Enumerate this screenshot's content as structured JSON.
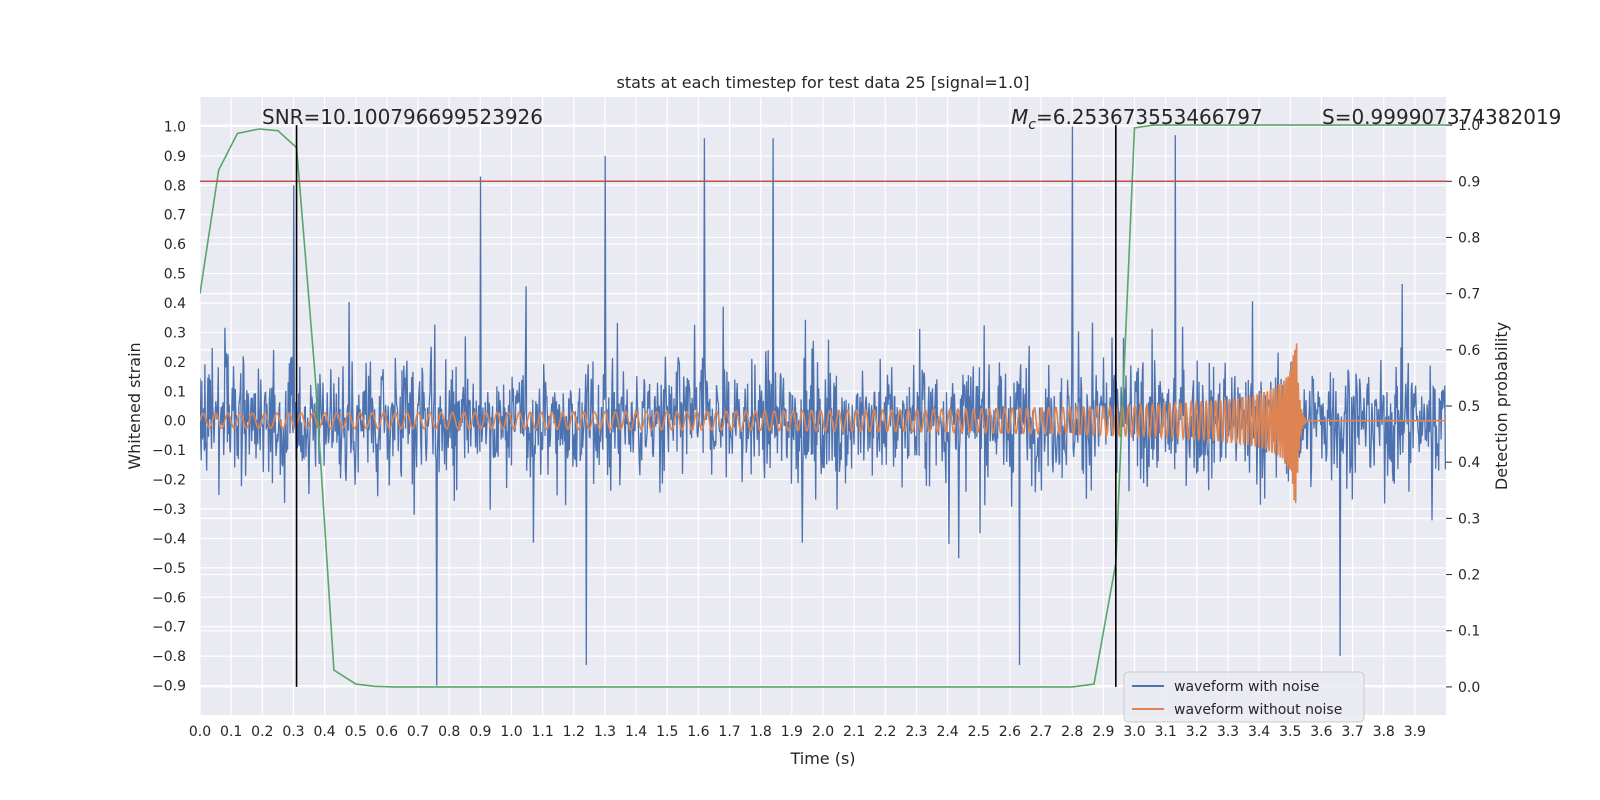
{
  "chart_data": {
    "type": "line",
    "title": "stats at each timestep for test data 25 [signal=1.0]",
    "xlabel": "Time (s)",
    "ylabel_left": "Whitened strain",
    "ylabel_right": "Detection probability",
    "xlim": [
      0.0,
      4.0
    ],
    "ylim_left": [
      -1.0,
      1.1
    ],
    "ylim_right": [
      -0.05,
      1.05
    ],
    "x_ticks": [
      "0.0",
      "0.1",
      "0.2",
      "0.3",
      "0.4",
      "0.5",
      "0.6",
      "0.7",
      "0.8",
      "0.9",
      "1.0",
      "1.1",
      "1.2",
      "1.3",
      "1.4",
      "1.5",
      "1.6",
      "1.7",
      "1.8",
      "1.9",
      "2.0",
      "2.1",
      "2.2",
      "2.3",
      "2.4",
      "2.5",
      "2.6",
      "2.7",
      "2.8",
      "2.9",
      "3.0",
      "3.1",
      "3.2",
      "3.3",
      "3.4",
      "3.5",
      "3.6",
      "3.7",
      "3.8",
      "3.9"
    ],
    "y_ticks_left": [
      "1.0",
      "0.9",
      "0.8",
      "0.7",
      "0.6",
      "0.5",
      "0.4",
      "0.3",
      "0.2",
      "0.1",
      "0.0",
      "−0.1",
      "−0.2",
      "−0.3",
      "−0.4",
      "−0.5",
      "−0.6",
      "−0.7",
      "−0.8",
      "−0.9"
    ],
    "y_ticks_right": [
      "1.0",
      "0.9",
      "0.8",
      "0.7",
      "0.6",
      "0.5",
      "0.4",
      "0.3",
      "0.2",
      "0.1",
      "0.0"
    ],
    "annotations": {
      "snr": "SNR=10.100796699523926",
      "mc_prefix": "M",
      "mc_sub": "c",
      "mc_value": "=6.253673553466797",
      "s": "S=0.999907374382019"
    },
    "threshold": {
      "axis": "right",
      "value": 0.9,
      "color": "#c44e52"
    },
    "vertical_lines": [
      0.31,
      2.94
    ],
    "series": [
      {
        "name": "waveform with noise",
        "axis": "left",
        "color": "#4c72b0",
        "kind": "noise",
        "std": 0.2,
        "peaks": [
          [
            0.3,
            0.8
          ],
          [
            0.9,
            0.83
          ],
          [
            1.3,
            0.9
          ],
          [
            1.62,
            0.96
          ],
          [
            1.84,
            0.96
          ],
          [
            2.8,
            1.0
          ],
          [
            3.13,
            0.97
          ],
          [
            0.76,
            -0.9
          ],
          [
            2.63,
            -0.83
          ],
          [
            1.24,
            -0.83
          ],
          [
            3.66,
            -0.8
          ]
        ]
      },
      {
        "name": "waveform without noise",
        "axis": "left",
        "color": "#dd8452",
        "kind": "chirp",
        "start_amplitude": 0.025,
        "end_time": 3.52,
        "peak_amplitude": 0.28,
        "start_frequency_hz": 25
      },
      {
        "name": "detection probability",
        "axis": "right",
        "color": "#55a868",
        "kind": "probability",
        "x": [
          0.0,
          0.06,
          0.12,
          0.19,
          0.25,
          0.31,
          0.37,
          0.43,
          0.5,
          0.56,
          0.62,
          2.8,
          2.87,
          2.94,
          3.0,
          3.06,
          3.12,
          3.9,
          4.0
        ],
        "y": [
          0.7,
          0.92,
          0.985,
          0.993,
          0.99,
          0.96,
          0.55,
          0.03,
          0.005,
          0.001,
          0.0,
          0.0,
          0.005,
          0.22,
          0.995,
          1.0,
          1.0,
          1.0,
          1.0
        ]
      }
    ],
    "legend": {
      "placement": "bottom-right",
      "entries": [
        "waveform with noise",
        "waveform without noise"
      ]
    }
  }
}
